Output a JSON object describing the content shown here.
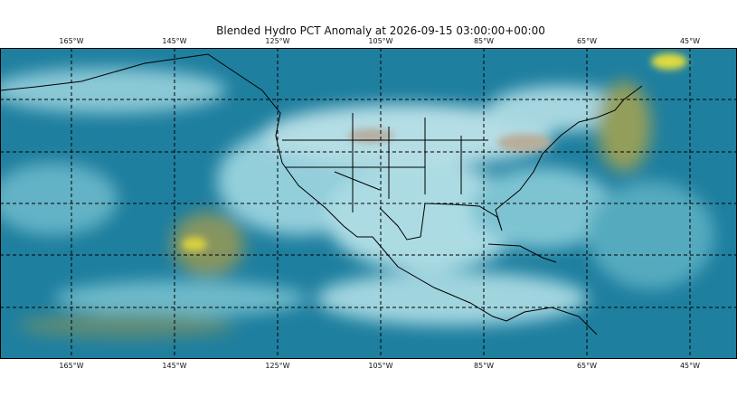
{
  "title": "Blended Hydro PCT Anomaly at 2026-09-15 03:00:00+00:00",
  "lon_labels": [
    "165°W",
    "145°W",
    "125°W",
    "105°W",
    "85°W",
    "65°W",
    "45°W"
  ]
}
